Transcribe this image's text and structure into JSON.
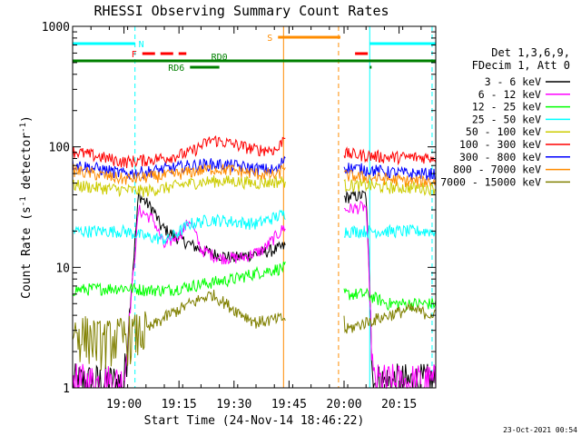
{
  "chart_data": {
    "type": "line",
    "title": "RHESSI Observing Summary Count Rates",
    "xlabel": "Start Time (24-Nov-14 18:46:22)",
    "ylabel": "Count Rate (s",
    "ylabel_sup1": "-1",
    "ylabel_mid": " detector",
    "ylabel_sup2": "-1",
    "ylabel_end": ")",
    "yscale": "log",
    "ylim": [
      1,
      1000
    ],
    "xlim_minutes": [
      0,
      99
    ],
    "x_ticks": [
      {
        "min": 14,
        "label": "19:00"
      },
      {
        "min": 29,
        "label": "19:15"
      },
      {
        "min": 44,
        "label": "19:30"
      },
      {
        "min": 59,
        "label": "19:45"
      },
      {
        "min": 74,
        "label": "20:00"
      },
      {
        "min": 89,
        "label": "20:15"
      }
    ],
    "y_ticks": [
      {
        "value": 1,
        "label": "1"
      },
      {
        "value": 10,
        "label": "10"
      },
      {
        "value": 100,
        "label": "100"
      },
      {
        "value": 1000,
        "label": "1000"
      }
    ],
    "legend_header": [
      "Det 1,3,6,9,",
      "FDecim 1, Att 0"
    ],
    "gaps_minutes": [
      [
        58,
        74
      ]
    ],
    "series": [
      {
        "name": "3 - 6 keV",
        "color": "#000000",
        "points": [
          [
            0,
            1.1
          ],
          [
            14,
            1.1
          ],
          [
            18,
            40
          ],
          [
            22,
            30
          ],
          [
            24,
            22
          ],
          [
            28,
            18
          ],
          [
            33,
            15
          ],
          [
            38,
            13
          ],
          [
            44,
            12
          ],
          [
            50,
            13
          ],
          [
            55,
            14
          ],
          [
            58,
            15
          ],
          [
            74,
            38
          ],
          [
            80,
            40
          ],
          [
            82,
            1.1
          ],
          [
            99,
            1.1
          ]
        ]
      },
      {
        "name": "6 - 12 keV",
        "color": "#ff00ff",
        "points": [
          [
            0,
            1.1
          ],
          [
            14,
            1.1
          ],
          [
            18,
            30
          ],
          [
            22,
            25
          ],
          [
            25,
            15
          ],
          [
            30,
            20
          ],
          [
            32,
            25
          ],
          [
            35,
            14
          ],
          [
            40,
            12
          ],
          [
            46,
            12
          ],
          [
            52,
            14
          ],
          [
            58,
            22
          ],
          [
            74,
            30
          ],
          [
            80,
            32
          ],
          [
            82,
            1.1
          ],
          [
            99,
            1.1
          ]
        ]
      },
      {
        "name": "12 - 25 keV",
        "color": "#00ff00",
        "points": [
          [
            0,
            6.5
          ],
          [
            14,
            6.8
          ],
          [
            20,
            6.5
          ],
          [
            26,
            6.5
          ],
          [
            32,
            7
          ],
          [
            38,
            7.5
          ],
          [
            44,
            8
          ],
          [
            50,
            9
          ],
          [
            58,
            10
          ],
          [
            74,
            6
          ],
          [
            80,
            6
          ],
          [
            86,
            5
          ],
          [
            92,
            5
          ],
          [
            99,
            5
          ]
        ]
      },
      {
        "name": "25 - 50 keV",
        "color": "#00ffff",
        "points": [
          [
            0,
            20
          ],
          [
            14,
            20
          ],
          [
            20,
            18
          ],
          [
            26,
            17
          ],
          [
            32,
            23
          ],
          [
            38,
            25
          ],
          [
            44,
            24
          ],
          [
            50,
            23
          ],
          [
            58,
            28
          ],
          [
            74,
            20
          ],
          [
            80,
            20
          ],
          [
            86,
            20
          ],
          [
            92,
            20
          ],
          [
            99,
            20
          ]
        ]
      },
      {
        "name": "50 - 100 keV",
        "color": "#cccc00",
        "points": [
          [
            0,
            48
          ],
          [
            14,
            44
          ],
          [
            20,
            43
          ],
          [
            26,
            46
          ],
          [
            32,
            50
          ],
          [
            38,
            52
          ],
          [
            44,
            52
          ],
          [
            50,
            50
          ],
          [
            58,
            52
          ],
          [
            74,
            48
          ],
          [
            80,
            48
          ],
          [
            86,
            46
          ],
          [
            92,
            46
          ],
          [
            99,
            45
          ]
        ]
      },
      {
        "name": "100 - 300 keV",
        "color": "#ff0000",
        "points": [
          [
            0,
            92
          ],
          [
            8,
            82
          ],
          [
            14,
            75
          ],
          [
            20,
            78
          ],
          [
            26,
            82
          ],
          [
            32,
            90
          ],
          [
            38,
            115
          ],
          [
            44,
            105
          ],
          [
            50,
            95
          ],
          [
            56,
            95
          ],
          [
            58,
            130
          ],
          [
            74,
            88
          ],
          [
            80,
            85
          ],
          [
            86,
            82
          ],
          [
            92,
            82
          ],
          [
            99,
            82
          ]
        ]
      },
      {
        "name": "300 - 800 keV",
        "color": "#0000ff",
        "points": [
          [
            0,
            72
          ],
          [
            8,
            65
          ],
          [
            14,
            60
          ],
          [
            20,
            62
          ],
          [
            26,
            66
          ],
          [
            32,
            70
          ],
          [
            38,
            72
          ],
          [
            44,
            70
          ],
          [
            50,
            66
          ],
          [
            56,
            64
          ],
          [
            58,
            85
          ],
          [
            74,
            68
          ],
          [
            80,
            65
          ],
          [
            86,
            62
          ],
          [
            92,
            60
          ],
          [
            99,
            60
          ]
        ]
      },
      {
        "name": "800 - 7000 keV",
        "color": "#ff8c00",
        "points": [
          [
            0,
            64
          ],
          [
            8,
            58
          ],
          [
            14,
            54
          ],
          [
            20,
            56
          ],
          [
            26,
            58
          ],
          [
            32,
            62
          ],
          [
            38,
            66
          ],
          [
            44,
            64
          ],
          [
            50,
            60
          ],
          [
            56,
            58
          ],
          [
            58,
            72
          ],
          [
            74,
            58
          ],
          [
            80,
            56
          ],
          [
            86,
            54
          ],
          [
            92,
            52
          ],
          [
            99,
            52
          ]
        ]
      },
      {
        "name": "7000 - 15000 keV",
        "color": "#808000",
        "points": [
          [
            0,
            3
          ],
          [
            8,
            2.5
          ],
          [
            14,
            2.7
          ],
          [
            20,
            3
          ],
          [
            26,
            4
          ],
          [
            32,
            5
          ],
          [
            38,
            6
          ],
          [
            44,
            4.5
          ],
          [
            50,
            3.5
          ],
          [
            58,
            3.8
          ],
          [
            74,
            3
          ],
          [
            80,
            3.5
          ],
          [
            86,
            4
          ],
          [
            92,
            4.5
          ],
          [
            99,
            4
          ]
        ]
      }
    ],
    "status_flags": [
      {
        "label": "N",
        "color": "#00ffff",
        "segments": [
          [
            0,
            17
          ],
          [
            81,
            99
          ]
        ]
      },
      {
        "label": "F",
        "color": "#ff0000",
        "segments": [
          [
            19,
            31
          ],
          [
            77,
            81
          ]
        ],
        "dashed": true
      },
      {
        "label": "RD0",
        "color": "#008000",
        "segments": [
          [
            0,
            99
          ]
        ]
      },
      {
        "label": "RD6",
        "color": "#008000",
        "segments": [
          [
            32,
            40
          ],
          [
            81,
            81.5
          ]
        ]
      },
      {
        "label": "S",
        "color": "#ff8c00",
        "segments": [
          [
            56,
            73
          ]
        ]
      }
    ],
    "vertical_markers": [
      {
        "min": 0,
        "color": "#00ffff",
        "dashed": false
      },
      {
        "min": 17,
        "color": "#00ffff",
        "dashed": true
      },
      {
        "min": 57.5,
        "color": "#ff8c00",
        "dashed": false
      },
      {
        "min": 72.5,
        "color": "#ff8c00",
        "dashed": true
      },
      {
        "min": 81,
        "color": "#00ffff",
        "dashed": false
      },
      {
        "min": 98,
        "color": "#00ffff",
        "dashed": true
      }
    ]
  },
  "footer_timestamp": "23-Oct-2021 00:54"
}
